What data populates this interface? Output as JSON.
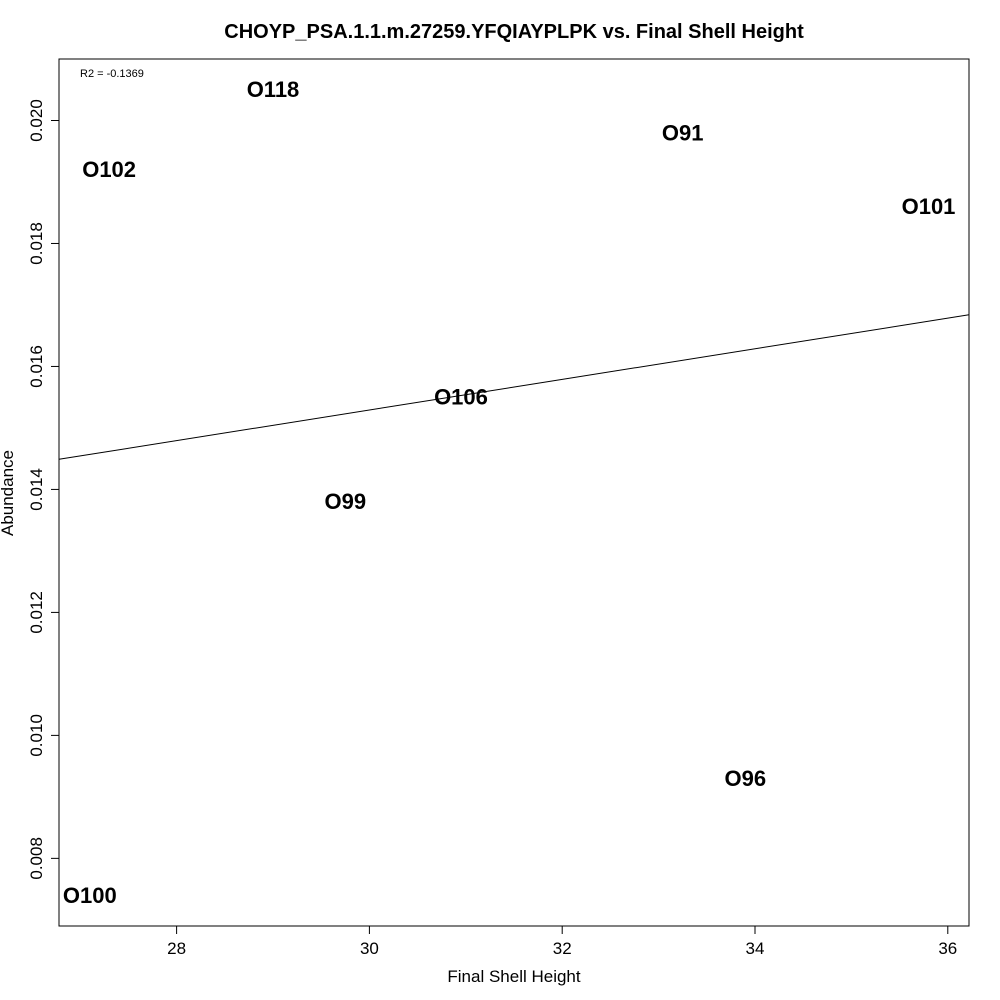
{
  "chart_data": {
    "type": "scatter",
    "title": "CHOYP_PSA.1.1.m.27259.YFQIAYPLPK vs. Final Shell Height",
    "xlabel": "Final Shell Height",
    "ylabel": "Abundance",
    "annotation": "R2 = -0.1369",
    "xlim": [
      26.78,
      36.22
    ],
    "ylim": [
      0.0069,
      0.021
    ],
    "xticks": [
      28,
      30,
      32,
      34,
      36
    ],
    "yticks": [
      0.008,
      0.01,
      0.012,
      0.014,
      0.016,
      0.018,
      0.02
    ],
    "xtick_labels": [
      "28",
      "30",
      "32",
      "34",
      "36"
    ],
    "ytick_labels": [
      "0.008",
      "0.010",
      "0.012",
      "0.014",
      "0.016",
      "0.018",
      "0.020"
    ],
    "points": [
      {
        "label": "O118",
        "x": 29.0,
        "y": 0.0205
      },
      {
        "label": "O91",
        "x": 33.25,
        "y": 0.0198
      },
      {
        "label": "O102",
        "x": 27.3,
        "y": 0.0192
      },
      {
        "label": "O101",
        "x": 35.8,
        "y": 0.0186
      },
      {
        "label": "O106",
        "x": 30.95,
        "y": 0.0155
      },
      {
        "label": "O99",
        "x": 29.75,
        "y": 0.0138
      },
      {
        "label": "O96",
        "x": 33.9,
        "y": 0.0093
      },
      {
        "label": "O100",
        "x": 27.1,
        "y": 0.0074
      }
    ],
    "fit_line": {
      "x": [
        26.78,
        36.22
      ],
      "y": [
        0.01449,
        0.01684
      ]
    },
    "grid": false,
    "legend": "none"
  }
}
